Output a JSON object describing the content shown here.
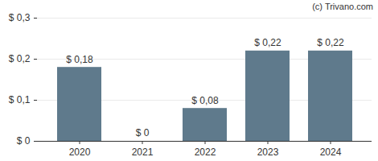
{
  "chart_data": {
    "type": "bar",
    "annotations": [
      "(c) Trivano.com"
    ],
    "categories": [
      "2020",
      "2021",
      "2022",
      "2023",
      "2024"
    ],
    "values": [
      0.18,
      0,
      0.08,
      0.22,
      0.22
    ],
    "value_labels": [
      "$ 0,18",
      "$ 0",
      "$ 0,08",
      "$ 0,22",
      "$ 0,22"
    ],
    "data_labels": true,
    "color": "#5f7a8c",
    "ylim": [
      0,
      0.3
    ],
    "yticks": [
      {
        "value": 0,
        "label": "$ 0"
      },
      {
        "value": 0.1,
        "label": "$ 0,1"
      },
      {
        "value": 0.2,
        "label": "$ 0,2"
      },
      {
        "value": 0.3,
        "label": "$ 0,3"
      }
    ],
    "grid": true
  }
}
